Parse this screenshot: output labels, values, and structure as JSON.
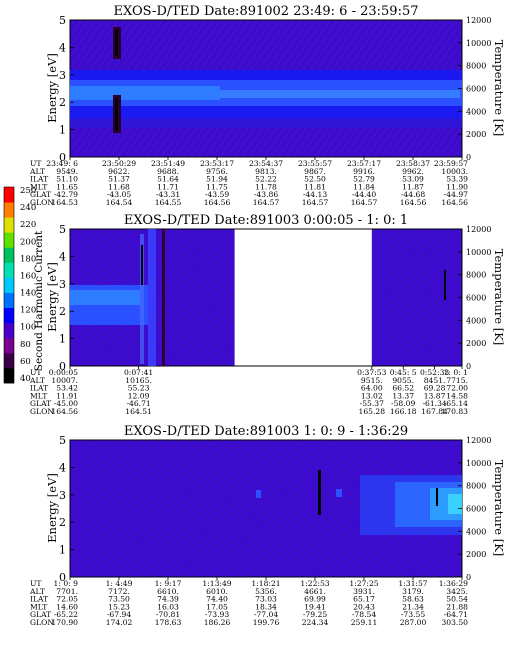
{
  "colorbar": {
    "label": "Second Harmonic Current",
    "ticks": [
      "40",
      "60",
      "80",
      "100",
      "120",
      "140",
      "160",
      "180",
      "200",
      "220",
      "240",
      "250"
    ],
    "colors": [
      "#000000",
      "#3a0046",
      "#7a0090",
      "#4a00c8",
      "#0000ff",
      "#0070ff",
      "#00c8ff",
      "#00e0b0",
      "#00c060",
      "#60e000",
      "#e0e000",
      "#ff8000",
      "#ff0000"
    ]
  },
  "chart_data": [
    {
      "type": "heatmap",
      "title": "EXOS-D/TED   Date:891002  23:49: 6 - 23:59:57",
      "ylabel": "Energy [eV]",
      "y2label": "Temperature [K]",
      "ylim": [
        0,
        5
      ],
      "y2lim": [
        0,
        12000
      ],
      "yticks": [
        "0",
        "1",
        "2",
        "3",
        "4",
        "5"
      ],
      "y2ticks": [
        "0",
        "2000",
        "4000",
        "6000",
        "8000",
        "10000",
        "12000"
      ],
      "data_gaps": [],
      "row_labels": [
        "UT",
        "ALT",
        "ILAT",
        "MLT",
        "GLAT",
        "GLON"
      ],
      "columns": [
        [
          "23:49: 6",
          "9549.",
          "51.10",
          "11.65",
          "-42.79",
          "164.53"
        ],
        [
          "23:50:29",
          "9622.",
          "51.37",
          "11.68",
          "-43.05",
          "164.54"
        ],
        [
          "23:51:49",
          "9688.",
          "51.64",
          "11.71",
          "-43.31",
          "164.55"
        ],
        [
          "23:53:17",
          "9756.",
          "51.94",
          "11.75",
          "-43.59",
          "164.56"
        ],
        [
          "23:54:37",
          "9813.",
          "52.22",
          "11.78",
          "-43.86",
          "164.57"
        ],
        [
          "23:55:57",
          "9867.",
          "52.50",
          "11.81",
          "-44.13",
          "164.57"
        ],
        [
          "23:57:17",
          "9916.",
          "52.79",
          "11.84",
          "-44.40",
          "164.57"
        ],
        [
          "23:58:37",
          "9962.",
          "53.09",
          "11.87",
          "-44.68",
          "164.56"
        ],
        [
          "23:59:57",
          "10003.",
          "53.39",
          "11.90",
          "-44.97",
          "164.56"
        ]
      ]
    },
    {
      "type": "heatmap",
      "title": "EXOS-D/TED   Date:891003  0:00:05 - 1: 0: 1",
      "ylabel": "Energy [eV]",
      "y2label": "Temperature [K]",
      "ylim": [
        0,
        5
      ],
      "y2lim": [
        0,
        12000
      ],
      "yticks": [
        "0",
        "1",
        "2",
        "3",
        "4",
        "5"
      ],
      "y2ticks": [
        "0",
        "2000",
        "4000",
        "6000",
        "8000",
        "10000",
        "12000"
      ],
      "data_gaps": [
        [
          0.42,
          0.77
        ]
      ],
      "row_labels": [
        "UT",
        "ALT",
        "ILAT",
        "MLT",
        "GLAT",
        "GLON"
      ],
      "columns": [
        [
          "0:00:05",
          "10007.",
          "53.42",
          "11.91",
          "-45.00",
          "164.56"
        ],
        [
          "0:07:41",
          "10165.",
          "55.23",
          "12.09",
          "-46.71",
          "164.51"
        ],
        [
          "0:37:53",
          "9515.",
          "64.00",
          "13.02",
          "-55.37",
          "165.28"
        ],
        [
          "0:45: 5",
          "9055.",
          "66.52",
          "13.37",
          "-58.09",
          "166.18"
        ],
        [
          "0:52:33",
          "8451.",
          "69.28",
          "13.87",
          "-61.34",
          "167.84"
        ],
        [
          "1: 0: 1",
          "7715.",
          "72.00",
          "14.58",
          "-65.14",
          "170.83"
        ]
      ]
    },
    {
      "type": "heatmap",
      "title": "EXOS-D/TED   Date:891003  1: 0: 9 - 1:36:29",
      "ylabel": "Energy [eV]",
      "y2label": "Temperature [K]",
      "ylim": [
        0,
        5
      ],
      "y2lim": [
        0,
        12000
      ],
      "yticks": [
        "0",
        "1",
        "2",
        "3",
        "4",
        "5"
      ],
      "y2ticks": [
        "0",
        "2000",
        "4000",
        "6000",
        "8000",
        "10000",
        "12000"
      ],
      "data_gaps": [],
      "row_labels": [
        "UT",
        "ALT",
        "ILAT",
        "MLT",
        "GLAT",
        "GLON"
      ],
      "columns": [
        [
          "1: 0: 9",
          "7701.",
          "72.05",
          "14.60",
          "-65.22",
          "170.90"
        ],
        [
          "1: 4:49",
          "7172.",
          "73.50",
          "15.23",
          "-67.94",
          "174.02"
        ],
        [
          "1: 9:17",
          "6610.",
          "74.39",
          "16.03",
          "-70.81",
          "178.63"
        ],
        [
          "1:13:49",
          "6010.",
          "74.40",
          "17.05",
          "-73.93",
          "186.26"
        ],
        [
          "1:18:21",
          "5356.",
          "73.03",
          "18.34",
          "-77.04",
          "199.76"
        ],
        [
          "1:22:53",
          "4661.",
          "69.99",
          "19.41",
          "-79.25",
          "224.34"
        ],
        [
          "1:27:25",
          "3931.",
          "65.17",
          "20.43",
          "-78.54",
          "259.11"
        ],
        [
          "1:31:57",
          "3179.",
          "58.63",
          "21.34",
          "-73.55",
          "287.00"
        ],
        [
          "1:36:29",
          "3425.",
          "50.54",
          "21.88",
          "-64.71",
          "303.50"
        ]
      ]
    }
  ]
}
